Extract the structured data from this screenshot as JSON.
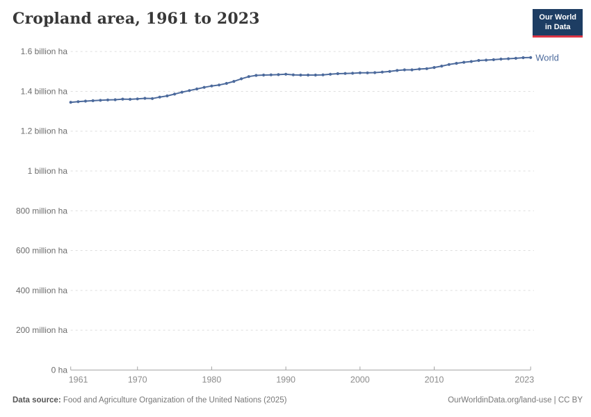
{
  "header": {
    "title": "Cropland area, 1961 to 2023"
  },
  "logo": {
    "line1": "Our World",
    "line2": "in Data",
    "bg_color": "#1d3d63",
    "accent_color": "#dc3545"
  },
  "chart_data": {
    "type": "line",
    "title": "Cropland area, 1961 to 2023",
    "unit": "ha",
    "grid": "horizontal-dashed",
    "legend_position": "end-of-line",
    "xlim": [
      1961,
      2023
    ],
    "ylim_billion_ha": [
      0,
      1.6
    ],
    "x_tick_labels": [
      "1961",
      "1970",
      "1980",
      "1990",
      "2000",
      "2010",
      "2023"
    ],
    "x_ticks": [
      1961,
      1970,
      1980,
      1990,
      2000,
      2010,
      2023
    ],
    "y_ticks": [
      {
        "value": 0,
        "label": "0 ha"
      },
      {
        "value": 0.2,
        "label": "200 million ha"
      },
      {
        "value": 0.4,
        "label": "400 million ha"
      },
      {
        "value": 0.6,
        "label": "600 million ha"
      },
      {
        "value": 0.8,
        "label": "800 million ha"
      },
      {
        "value": 1.0,
        "label": "1 billion ha"
      },
      {
        "value": 1.2,
        "label": "1.2 billion ha"
      },
      {
        "value": 1.4,
        "label": "1.4 billion ha"
      },
      {
        "value": 1.6,
        "label": "1.6 billion ha"
      }
    ],
    "series": [
      {
        "name": "World",
        "color": "#4c6a9c",
        "years": [
          1961,
          1962,
          1963,
          1964,
          1965,
          1966,
          1967,
          1968,
          1969,
          1970,
          1971,
          1972,
          1973,
          1974,
          1975,
          1976,
          1977,
          1978,
          1979,
          1980,
          1981,
          1982,
          1983,
          1984,
          1985,
          1986,
          1987,
          1988,
          1989,
          1990,
          1991,
          1992,
          1993,
          1994,
          1995,
          1996,
          1997,
          1998,
          1999,
          2000,
          2001,
          2002,
          2003,
          2004,
          2005,
          2006,
          2007,
          2008,
          2009,
          2010,
          2011,
          2012,
          2013,
          2014,
          2015,
          2016,
          2017,
          2018,
          2019,
          2020,
          2021,
          2022,
          2023
        ],
        "values_billion_ha": [
          1.345,
          1.348,
          1.351,
          1.353,
          1.355,
          1.357,
          1.358,
          1.361,
          1.36,
          1.362,
          1.365,
          1.364,
          1.371,
          1.377,
          1.386,
          1.396,
          1.404,
          1.412,
          1.42,
          1.427,
          1.432,
          1.44,
          1.45,
          1.463,
          1.474,
          1.48,
          1.482,
          1.483,
          1.484,
          1.486,
          1.483,
          1.482,
          1.482,
          1.482,
          1.483,
          1.486,
          1.489,
          1.49,
          1.491,
          1.493,
          1.493,
          1.494,
          1.497,
          1.5,
          1.505,
          1.508,
          1.508,
          1.512,
          1.514,
          1.52,
          1.527,
          1.535,
          1.541,
          1.546,
          1.55,
          1.555,
          1.557,
          1.559,
          1.562,
          1.564,
          1.566,
          1.569,
          1.57
        ]
      }
    ],
    "colors": {
      "line": "#4c6a9c",
      "gridline": "#dedede",
      "axis": "#a3a3a3",
      "y_label": "#6c6c6c",
      "x_label": "#8c8c8c"
    }
  },
  "footer": {
    "source_label": "Data source:",
    "source_text": " Food and Agriculture Organization of the United Nations (2025)",
    "credit": "OurWorldinData.org/land-use | CC BY"
  }
}
